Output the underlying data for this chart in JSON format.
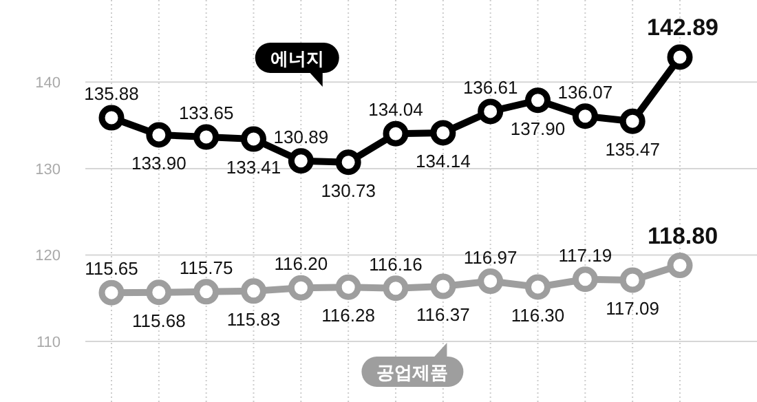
{
  "chart_data": {
    "type": "line",
    "categories": [
      null,
      null,
      null,
      null,
      null,
      null,
      null,
      null,
      null,
      null,
      null,
      null,
      null
    ],
    "ylim": [
      103,
      149.5
    ],
    "yticks": [
      110,
      120,
      130,
      140
    ],
    "grid": true,
    "marker": "circle",
    "line_style": "solid",
    "series": [
      {
        "name": "에너지",
        "color": "#000000",
        "values": [
          135.88,
          133.9,
          133.65,
          133.41,
          130.89,
          130.73,
          134.04,
          134.14,
          136.61,
          137.9,
          136.07,
          135.47,
          142.89
        ],
        "value_labels": [
          "135.88",
          "133.90",
          "133.65",
          "133.41",
          "130.89",
          "130.73",
          "134.04",
          "134.14",
          "136.61",
          "137.90",
          "136.07",
          "135.47",
          "142.89"
        ]
      },
      {
        "name": "공업제품",
        "color": "#9e9e9e",
        "values": [
          115.65,
          115.68,
          115.75,
          115.83,
          116.2,
          116.28,
          116.16,
          116.37,
          116.97,
          116.3,
          117.19,
          117.09,
          118.8
        ],
        "value_labels": [
          "115.65",
          "115.68",
          "115.75",
          "115.83",
          "116.20",
          "116.28",
          "116.16",
          "116.37",
          "116.97",
          "116.30",
          "117.19",
          "117.09",
          "118.80"
        ]
      }
    ]
  }
}
